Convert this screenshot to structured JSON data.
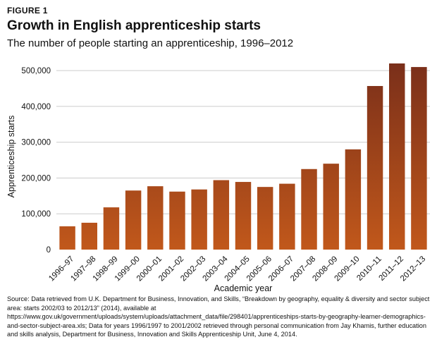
{
  "figure": {
    "label": "FIGURE 1",
    "title": "Growth in English apprenticeship starts",
    "subtitle": "The number of people starting an apprenticeship, 1996–2012"
  },
  "source": "Source: Data retrieved from U.K. Department for Business, Innovation, and Skills, “Breakdown by geography, equality & diversity and sector subject area: starts 2002/03 to 2012/13” (2014), available at https://www.gov.uk/government/uploads/system/uploads/attachment_data/file/298401/apprenticeships-starts-by-geography-learner-demographics-and-sector-subject-area.xls; Data for years 1996/1997 to 2001/2002 retrieved through personal communication from Jay Khamis, further education and skills analysis, Department for Business, Innovation and Skills Apprenticeship Unit, June 4, 2014.",
  "chart_data": {
    "type": "bar",
    "categories": [
      "1996–97",
      "1997–98",
      "1998–99",
      "1999–00",
      "2000–01",
      "2001–02",
      "2002–03",
      "2003–04",
      "2004–05",
      "2005–06",
      "2006–07",
      "2007–08",
      "2008–09",
      "2009–10",
      "2010–11",
      "2011–12",
      "2012–13"
    ],
    "values": [
      65000,
      75000,
      118000,
      165000,
      177000,
      162000,
      168000,
      194000,
      189000,
      175000,
      184000,
      225000,
      240000,
      280000,
      457000,
      520000,
      510000
    ],
    "xlabel": "Academic year",
    "ylabel": "Apprenticeship starts",
    "ylim": [
      0,
      520000
    ],
    "yticks": [
      0,
      100000,
      200000,
      300000,
      400000,
      500000
    ],
    "ytick_labels": [
      "0",
      "100,000",
      "200,000",
      "300,000",
      "400,000",
      "500,000"
    ],
    "grid": true,
    "colors": {
      "bar_top": "#7a2f1a",
      "bar_bottom": "#c1581b",
      "grid": "#cccccc"
    }
  }
}
